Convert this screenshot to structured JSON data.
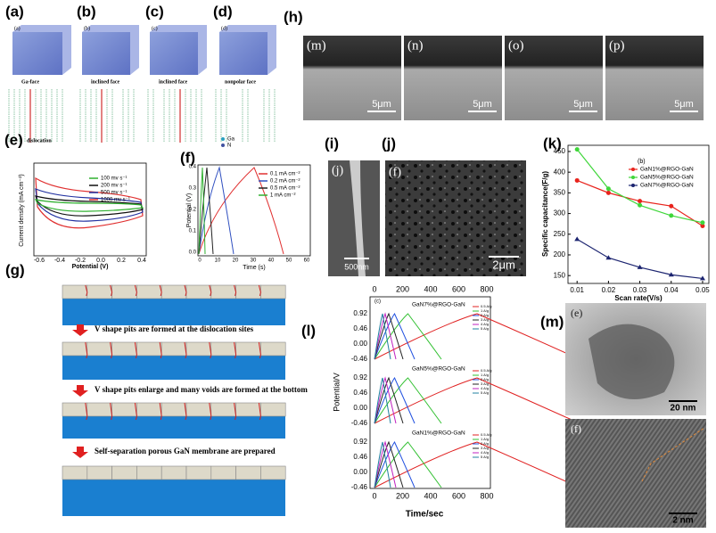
{
  "panels": {
    "a": {
      "label": "(a)",
      "inner": "(a)",
      "face": "Ga-face",
      "defect": "dislocation"
    },
    "b": {
      "label": "(b)",
      "inner": "(b)",
      "face": "inclined face"
    },
    "c": {
      "label": "(c)",
      "inner": "(c)",
      "face": "inclined face"
    },
    "d": {
      "label": "(d)",
      "inner": "(d)",
      "face": "nonpolar face",
      "atoms": [
        "Ga",
        "N"
      ]
    },
    "h": {
      "label": "(h)",
      "images": [
        {
          "label": "(m)",
          "scale": "5μm"
        },
        {
          "label": "(n)",
          "scale": "5μm"
        },
        {
          "label": "(o)",
          "scale": "5μm"
        },
        {
          "label": "(p)",
          "scale": "5μm"
        }
      ]
    },
    "e": {
      "label": "(e)",
      "y_label": "Current density (mA cm⁻²)",
      "x_label": "Potential (V)",
      "xticks": [
        "-0.6",
        "-0.4",
        "-0.2",
        "0.0",
        "0.2",
        "0.4"
      ],
      "legend": [
        "100 mv s⁻¹",
        "200 mv s⁻¹",
        "500 mv s⁻¹",
        "1000 mv s⁻¹"
      ]
    },
    "f": {
      "label": "(f)",
      "y_label": "Potential (V)",
      "x_label": "Time (s)",
      "xticks": [
        "0",
        "10",
        "20",
        "30",
        "40",
        "50",
        "60"
      ],
      "yticks": [
        "0.0",
        "0.1",
        "0.2",
        "0.3",
        "0.4"
      ],
      "legend": [
        "0.1 mA cm⁻²",
        "0.2 mA cm⁻²",
        "0.5 mA cm⁻²",
        "1  mA cm⁻²"
      ]
    },
    "i": {
      "label": "(i)",
      "inner": "(j)",
      "scale": "500nm"
    },
    "j": {
      "label": "(j)",
      "inner": "(f)",
      "scale": "2μm"
    },
    "k": {
      "label": "(k)",
      "chart": {
        "type": "line",
        "inner_label": "(b)",
        "x_label": "Scan rate(V/s)",
        "y_label": "Specific capacitance(F/g)",
        "x": [
          0.01,
          0.02,
          0.03,
          0.04,
          0.05
        ],
        "series": [
          {
            "name": "GaN1%@RGO-GaN",
            "color": "#e8231c",
            "marker": "circle",
            "values": [
              380,
              350,
              330,
              318,
              270
            ]
          },
          {
            "name": "GaN5%@RGO-GaN",
            "color": "#3fd63a",
            "marker": "circle",
            "values": [
              455,
              360,
              320,
              295,
              278
            ]
          },
          {
            "name": "GaN7%@RGO-GaN",
            "color": "#1c2470",
            "marker": "triangle",
            "values": [
              238,
              193,
              170,
              152,
              143
            ]
          }
        ],
        "xlim": [
          0.0071,
          0.052
        ],
        "ylim": [
          131,
          465
        ],
        "xticks": [
          0.01,
          0.02,
          0.03,
          0.04,
          0.05
        ],
        "yticks": [
          150,
          200,
          250,
          300,
          350,
          400,
          450
        ]
      }
    },
    "g": {
      "label": "(g)",
      "steps": [
        "V shape pits are formed at the dislocation sites",
        "V shape pits enlarge and many voids are formed at the bottom",
        "Self-separation porous GaN membrane are prepared"
      ]
    },
    "l": {
      "label": "(l)",
      "inner": "(c)",
      "x_label": "Time/sec",
      "y_label": "Potential/V",
      "xticks": [
        "0",
        "200",
        "400",
        "600",
        "800"
      ],
      "yticks": [
        "0.92",
        "0.46",
        "0.00",
        "-0.46"
      ],
      "groups": [
        "GaN7%@RGO-GaN",
        "GaN5%@RGO-GaN",
        "GaN1%@RGO-GaN"
      ],
      "legend": [
        "0.5 A/g",
        "1 A/g",
        "2 A/g",
        "3 A/g",
        "4 A/g",
        "5 A/g"
      ]
    },
    "m": {
      "label": "(m)",
      "images": [
        {
          "label": "(e)",
          "scale": "20 nm"
        },
        {
          "label": "(f)",
          "scale": "2 nm"
        }
      ]
    }
  }
}
